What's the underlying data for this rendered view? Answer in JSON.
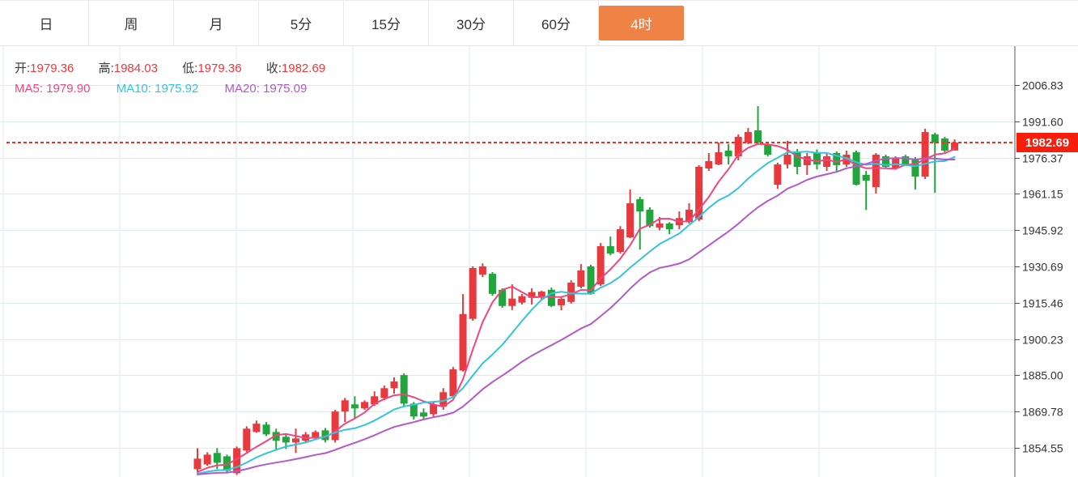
{
  "tabs": {
    "items": [
      {
        "label": "日",
        "active": false
      },
      {
        "label": "周",
        "active": false
      },
      {
        "label": "月",
        "active": false
      },
      {
        "label": "5分",
        "active": false
      },
      {
        "label": "15分",
        "active": false
      },
      {
        "label": "30分",
        "active": false
      },
      {
        "label": "60分",
        "active": false
      },
      {
        "label": "4时",
        "active": true
      }
    ]
  },
  "legend": {
    "ohlc": [
      {
        "label": "开:",
        "value": "1979.36"
      },
      {
        "label": "高:",
        "value": "1984.03"
      },
      {
        "label": "低:",
        "value": "1979.36"
      },
      {
        "label": "收:",
        "value": "1982.69"
      }
    ],
    "ma": [
      {
        "label": "MA5:",
        "value": "1979.90",
        "color": "#F0467E"
      },
      {
        "label": "MA10:",
        "value": "1975.92",
        "color": "#35C4DC"
      },
      {
        "label": "MA20:",
        "value": "1975.09",
        "color": "#B35AC8"
      }
    ]
  },
  "current_price": {
    "value": "1982.69",
    "color": "#F71E0C"
  },
  "colors": {
    "up": "#E63A3E",
    "down": "#22A53C",
    "grid": "#DDE9F3",
    "axis": "#555555",
    "dashed_line": "#FB2A1C",
    "tab_active_bg": "#EF8245",
    "ohlc_value": "#F43539",
    "tick_label": "#333333"
  },
  "chart_data": {
    "type": "candlestick",
    "timeframe": "4时",
    "legend_position": "top-left",
    "grid": true,
    "y_axis_side": "right",
    "y_ticks": [
      2006.83,
      1991.6,
      1976.37,
      1961.15,
      1945.92,
      1930.69,
      1915.46,
      1900.23,
      1885.0,
      1869.78,
      1854.55
    ],
    "current_price": 1982.69,
    "last_bar": {
      "open": 1979.36,
      "high": 1984.03,
      "low": 1979.36,
      "close": 1982.69
    },
    "moving_averages": [
      {
        "name": "MA5",
        "period": 5,
        "value": 1979.9,
        "color": "#F0467E"
      },
      {
        "name": "MA10",
        "period": 10,
        "value": 1975.92,
        "color": "#35C4DC"
      },
      {
        "name": "MA20",
        "period": 20,
        "value": 1975.09,
        "color": "#B35AC8"
      }
    ],
    "candles_format": [
      "open",
      "high",
      "low",
      "close"
    ],
    "candles": [
      [
        1845.6,
        1854.4,
        1844.2,
        1850.0
      ],
      [
        1847.6,
        1852.7,
        1847.0,
        1851.7
      ],
      [
        1852.4,
        1854.4,
        1845.6,
        1848.3
      ],
      [
        1851.0,
        1851.7,
        1844.2,
        1844.9
      ],
      [
        1843.9,
        1855.1,
        1843.2,
        1854.4
      ],
      [
        1853.4,
        1863.6,
        1852.7,
        1862.6
      ],
      [
        1861.2,
        1866.0,
        1860.9,
        1864.7
      ],
      [
        1864.3,
        1865.4,
        1859.5,
        1860.2
      ],
      [
        1861.2,
        1862.6,
        1853.4,
        1857.5
      ],
      [
        1859.2,
        1860.2,
        1854.1,
        1856.8
      ],
      [
        1856.8,
        1862.6,
        1852.4,
        1858.5
      ],
      [
        1857.5,
        1861.2,
        1856.8,
        1860.2
      ],
      [
        1858.5,
        1861.9,
        1857.8,
        1861.2
      ],
      [
        1861.9,
        1862.9,
        1856.8,
        1857.8
      ],
      [
        1857.8,
        1870.5,
        1856.8,
        1869.8
      ],
      [
        1869.8,
        1875.5,
        1865.4,
        1874.5
      ],
      [
        1872.8,
        1876.2,
        1867.1,
        1871.1
      ],
      [
        1871.1,
        1874.5,
        1870.5,
        1873.8
      ],
      [
        1872.8,
        1878.3,
        1872.2,
        1876.2
      ],
      [
        1875.5,
        1880.7,
        1874.5,
        1879.6
      ],
      [
        1879.6,
        1884.1,
        1877.3,
        1882.4
      ],
      [
        1885.1,
        1885.8,
        1872.2,
        1873.1
      ],
      [
        1873.1,
        1873.8,
        1866.4,
        1867.7
      ],
      [
        1869.4,
        1871.1,
        1866.4,
        1867.7
      ],
      [
        1868.7,
        1873.8,
        1867.7,
        1872.8
      ],
      [
        1871.8,
        1879.6,
        1870.5,
        1877.9
      ],
      [
        1876.2,
        1888.5,
        1875.5,
        1887.5
      ],
      [
        1887.0,
        1919.1,
        1886.6,
        1910.7
      ],
      [
        1908.7,
        1930.7,
        1907.9,
        1930.0
      ],
      [
        1927.3,
        1932.0,
        1926.2,
        1930.7
      ],
      [
        1927.6,
        1928.3,
        1918.4,
        1919.2
      ],
      [
        1920.9,
        1921.5,
        1913.3,
        1914.1
      ],
      [
        1914.1,
        1923.2,
        1912.4,
        1917.2
      ],
      [
        1915.5,
        1919.1,
        1914.7,
        1918.2
      ],
      [
        1917.5,
        1921.5,
        1914.7,
        1919.9
      ],
      [
        1917.7,
        1920.5,
        1916.8,
        1920.1
      ],
      [
        1920.9,
        1921.8,
        1913.7,
        1914.1
      ],
      [
        1914.4,
        1917.7,
        1912.3,
        1917.1
      ],
      [
        1915.8,
        1924.9,
        1915.1,
        1923.9
      ],
      [
        1922.2,
        1931.7,
        1921.5,
        1929.0
      ],
      [
        1930.7,
        1931.4,
        1918.8,
        1919.2
      ],
      [
        1923.2,
        1940.5,
        1922.5,
        1939.2
      ],
      [
        1939.2,
        1943.2,
        1935.4,
        1936.1
      ],
      [
        1936.8,
        1947.6,
        1936.1,
        1946.3
      ],
      [
        1942.9,
        1963.0,
        1942.5,
        1957.2
      ],
      [
        1958.9,
        1959.9,
        1937.8,
        1953.8
      ],
      [
        1954.5,
        1955.5,
        1947.0,
        1947.6
      ],
      [
        1947.0,
        1951.4,
        1945.9,
        1948.7
      ],
      [
        1948.7,
        1949.3,
        1944.2,
        1946.3
      ],
      [
        1948.0,
        1953.8,
        1946.3,
        1951.0
      ],
      [
        1949.3,
        1957.2,
        1948.7,
        1954.5
      ],
      [
        1950.4,
        1973.2,
        1949.7,
        1972.5
      ],
      [
        1971.8,
        1978.3,
        1970.8,
        1974.9
      ],
      [
        1973.5,
        1982.7,
        1973.2,
        1978.6
      ],
      [
        1979.3,
        1982.0,
        1973.5,
        1976.9
      ],
      [
        1976.9,
        1986.1,
        1975.2,
        1985.1
      ],
      [
        1982.7,
        1988.8,
        1982.0,
        1987.1
      ],
      [
        1987.8,
        1998.0,
        1982.0,
        1982.7
      ],
      [
        1982.0,
        1982.7,
        1976.9,
        1977.6
      ],
      [
        1965.0,
        1974.2,
        1963.3,
        1973.5
      ],
      [
        1973.5,
        1983.4,
        1971.8,
        1977.6
      ],
      [
        1978.6,
        1980.0,
        1969.4,
        1972.5
      ],
      [
        1973.2,
        1978.3,
        1969.1,
        1976.9
      ],
      [
        1978.6,
        1979.8,
        1971.4,
        1973.5
      ],
      [
        1972.5,
        1978.0,
        1970.8,
        1976.9
      ],
      [
        1978.3,
        1979.0,
        1970.5,
        1973.2
      ],
      [
        1973.5,
        1979.3,
        1972.5,
        1977.6
      ],
      [
        1978.6,
        1979.3,
        1964.7,
        1965.0
      ],
      [
        1969.1,
        1970.8,
        1954.4,
        1966.7
      ],
      [
        1964.0,
        1978.3,
        1961.3,
        1977.6
      ],
      [
        1976.9,
        1977.6,
        1971.8,
        1972.5
      ],
      [
        1971.8,
        1976.9,
        1971.4,
        1976.4
      ],
      [
        1976.9,
        1977.6,
        1972.8,
        1973.5
      ],
      [
        1975.9,
        1976.6,
        1963.0,
        1968.4
      ],
      [
        1968.4,
        1988.5,
        1967.4,
        1987.1
      ],
      [
        1986.1,
        1986.8,
        1961.6,
        1982.7
      ],
      [
        1984.4,
        1985.1,
        1978.6,
        1979.3
      ],
      [
        1979.36,
        1984.03,
        1979.36,
        1982.69
      ]
    ]
  }
}
